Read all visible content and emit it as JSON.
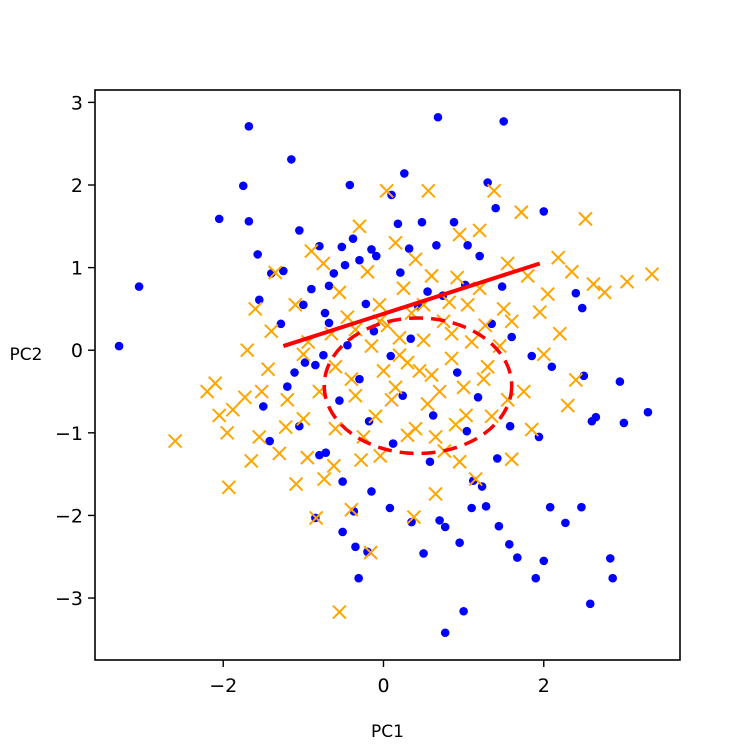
{
  "chart_data": {
    "type": "scatter",
    "title": "",
    "xlabel": "PC1",
    "ylabel": "PC2",
    "xlim": [
      -3.6,
      3.7
    ],
    "ylim": [
      -3.75,
      3.15
    ],
    "xticks": [
      -2,
      0,
      2
    ],
    "xtick_labels": [
      "−2",
      "0",
      "2"
    ],
    "yticks": [
      -3,
      -2,
      -1,
      0,
      1,
      2,
      3
    ],
    "ytick_labels": [
      "−3",
      "−2",
      "−1",
      "0",
      "1",
      "2",
      "3"
    ],
    "grid": false,
    "legend": "none",
    "series": [
      {
        "marker": "dot",
        "color": "#0000ff",
        "points": [
          [
            -3.3,
            0.05
          ],
          [
            -3.05,
            0.77
          ],
          [
            -2.05,
            1.59
          ],
          [
            -1.68,
            2.71
          ],
          [
            -1.75,
            1.99
          ],
          [
            -1.68,
            1.56
          ],
          [
            -1.57,
            1.16
          ],
          [
            -1.55,
            0.61
          ],
          [
            -1.4,
            0.93
          ],
          [
            -1.25,
            0.96
          ],
          [
            -1.15,
            2.31
          ],
          [
            -1.05,
            1.45
          ],
          [
            -1.0,
            0.55
          ],
          [
            -0.98,
            -0.15
          ],
          [
            -0.85,
            -0.18
          ],
          [
            -0.8,
            1.26
          ],
          [
            -0.75,
            -0.06
          ],
          [
            -0.73,
            0.45
          ],
          [
            -0.68,
            0.78
          ],
          [
            -0.62,
            0.93
          ],
          [
            -0.52,
            1.25
          ],
          [
            -0.48,
            1.03
          ],
          [
            -0.42,
            2.0
          ],
          [
            -0.38,
            1.35
          ],
          [
            -0.3,
            1.09
          ],
          [
            -0.22,
            0.56
          ],
          [
            -0.15,
            1.22
          ],
          [
            -0.09,
            1.14
          ],
          [
            0.1,
            1.88
          ],
          [
            0.18,
            1.53
          ],
          [
            0.26,
            2.14
          ],
          [
            0.32,
            1.23
          ],
          [
            0.48,
            1.55
          ],
          [
            0.55,
            0.71
          ],
          [
            0.68,
            2.82
          ],
          [
            0.88,
            1.55
          ],
          [
            1.05,
            1.27
          ],
          [
            1.2,
            1.14
          ],
          [
            1.3,
            2.03
          ],
          [
            1.4,
            1.72
          ],
          [
            1.5,
            2.77
          ],
          [
            2.0,
            1.68
          ],
          [
            2.4,
            0.69
          ],
          [
            2.48,
            0.51
          ],
          [
            2.5,
            -0.31
          ],
          [
            2.6,
            -0.86
          ],
          [
            2.65,
            -0.81
          ],
          [
            2.95,
            -0.38
          ],
          [
            3.0,
            -0.88
          ],
          [
            3.3,
            -0.75
          ],
          [
            -1.5,
            -0.68
          ],
          [
            -1.42,
            -1.1
          ],
          [
            -1.2,
            -0.44
          ],
          [
            -1.05,
            -0.92
          ],
          [
            -0.8,
            -1.27
          ],
          [
            -0.72,
            -1.24
          ],
          [
            -0.51,
            -1.59
          ],
          [
            -0.51,
            -2.2
          ],
          [
            -0.37,
            -1.95
          ],
          [
            -0.35,
            -2.38
          ],
          [
            -0.2,
            -2.44
          ],
          [
            -0.15,
            -1.71
          ],
          [
            0.08,
            -1.91
          ],
          [
            0.35,
            -2.08
          ],
          [
            0.5,
            -2.46
          ],
          [
            0.7,
            -2.06
          ],
          [
            0.77,
            -2.14
          ],
          [
            0.95,
            -2.33
          ],
          [
            1.0,
            -3.16
          ],
          [
            1.1,
            -1.91
          ],
          [
            1.23,
            -1.65
          ],
          [
            1.28,
            -1.89
          ],
          [
            1.44,
            -2.13
          ],
          [
            1.57,
            -2.35
          ],
          [
            1.67,
            -2.51
          ],
          [
            1.9,
            -2.76
          ],
          [
            2.0,
            -2.55
          ],
          [
            2.08,
            -1.9
          ],
          [
            2.27,
            -2.09
          ],
          [
            2.47,
            -1.9
          ],
          [
            2.58,
            -3.07
          ],
          [
            2.83,
            -2.52
          ],
          [
            2.86,
            -2.76
          ],
          [
            0.77,
            -3.42
          ],
          [
            -0.31,
            -2.76
          ],
          [
            -0.85,
            -2.03
          ],
          [
            0.43,
            0.54
          ],
          [
            0.74,
            0.66
          ],
          [
            1.02,
            0.79
          ],
          [
            1.35,
            0.32
          ],
          [
            1.6,
            0.16
          ],
          [
            1.85,
            -0.07
          ],
          [
            2.1,
            -0.2
          ],
          [
            1.58,
            -0.92
          ],
          [
            1.94,
            -1.05
          ],
          [
            1.42,
            -1.31
          ],
          [
            1.04,
            -0.98
          ],
          [
            0.62,
            -0.79
          ],
          [
            0.24,
            -0.55
          ],
          [
            -0.3,
            -0.35
          ],
          [
            -0.55,
            -0.61
          ],
          [
            -0.12,
            0.23
          ],
          [
            0.09,
            -0.07
          ],
          [
            0.34,
            0.14
          ],
          [
            0.92,
            -0.27
          ],
          [
            1.18,
            -0.57
          ],
          [
            -0.68,
            0.33
          ],
          [
            -0.45,
            0.06
          ],
          [
            -0.18,
            -0.86
          ],
          [
            0.12,
            -1.13
          ],
          [
            0.58,
            -1.35
          ],
          [
            1.12,
            -1.58
          ],
          [
            -0.9,
            0.74
          ],
          [
            -1.28,
            0.32
          ],
          [
            -1.11,
            -0.27
          ],
          [
            0.21,
            0.94
          ],
          [
            0.66,
            1.27
          ],
          [
            1.48,
            0.77
          ]
        ]
      },
      {
        "marker": "x",
        "color": "#ffa500",
        "points": [
          [
            -2.6,
            -1.1
          ],
          [
            -2.1,
            -0.4
          ],
          [
            -2.05,
            -0.79
          ],
          [
            -1.93,
            -1.66
          ],
          [
            -1.88,
            -0.72
          ],
          [
            -1.73,
            -0.57
          ],
          [
            -1.65,
            -1.34
          ],
          [
            -1.52,
            -0.5
          ],
          [
            -1.44,
            -0.23
          ],
          [
            -1.35,
            0.94
          ],
          [
            -1.22,
            -0.93
          ],
          [
            -1.09,
            -1.62
          ],
          [
            -1.0,
            -0.83
          ],
          [
            -0.94,
            0.1
          ],
          [
            -0.84,
            -2.03
          ],
          [
            -0.74,
            -1.56
          ],
          [
            -0.62,
            -1.4
          ],
          [
            -0.55,
            -3.17
          ],
          [
            -0.4,
            -1.93
          ],
          [
            -0.28,
            -1.33
          ],
          [
            -0.16,
            -2.45
          ],
          [
            -0.04,
            -1.28
          ],
          [
            0.04,
            1.93
          ],
          [
            0.2,
            -0.06
          ],
          [
            0.3,
            -1.03
          ],
          [
            0.38,
            -2.02
          ],
          [
            0.5,
            0.12
          ],
          [
            0.56,
            1.93
          ],
          [
            0.65,
            -1.74
          ],
          [
            0.76,
            -1.22
          ],
          [
            0.82,
            0.58
          ],
          [
            0.92,
            0.88
          ],
          [
            1.03,
            -0.79
          ],
          [
            1.15,
            -1.56
          ],
          [
            1.27,
            0.3
          ],
          [
            1.38,
            1.93
          ],
          [
            1.5,
            0.5
          ],
          [
            1.6,
            -1.32
          ],
          [
            1.72,
            1.67
          ],
          [
            1.85,
            -0.96
          ],
          [
            1.95,
            0.46
          ],
          [
            2.05,
            0.68
          ],
          [
            2.18,
            1.12
          ],
          [
            2.3,
            -0.67
          ],
          [
            2.4,
            -0.36
          ],
          [
            2.52,
            1.59
          ],
          [
            2.62,
            0.8
          ],
          [
            2.76,
            0.7
          ],
          [
            3.04,
            0.83
          ],
          [
            3.35,
            0.92
          ],
          [
            -1.7,
            0.0
          ],
          [
            -1.4,
            0.23
          ],
          [
            -1.1,
            0.55
          ],
          [
            -0.9,
            1.2
          ],
          [
            -0.75,
            1.05
          ],
          [
            -0.55,
            0.7
          ],
          [
            -0.35,
            0.25
          ],
          [
            -0.2,
            0.95
          ],
          [
            0.05,
            0.3
          ],
          [
            0.25,
            0.75
          ],
          [
            0.45,
            -0.25
          ],
          [
            0.7,
            -0.5
          ],
          [
            0.9,
            -0.9
          ],
          [
            1.1,
            0.1
          ],
          [
            1.3,
            -0.2
          ],
          [
            -0.6,
            -0.2
          ],
          [
            -0.35,
            -0.55
          ],
          [
            -0.1,
            -0.8
          ],
          [
            0.15,
            -0.45
          ],
          [
            0.35,
            0.45
          ],
          [
            0.55,
            -0.65
          ],
          [
            0.85,
            0.2
          ],
          [
            1.05,
            0.55
          ],
          [
            1.25,
            -0.35
          ],
          [
            1.45,
            0.05
          ],
          [
            -0.8,
            -0.5
          ],
          [
            -1.0,
            -0.05
          ],
          [
            -1.2,
            -0.6
          ],
          [
            -0.45,
            0.4
          ],
          [
            -0.05,
            0.55
          ],
          [
            0.6,
            0.9
          ],
          [
            0.85,
            -0.1
          ],
          [
            1.6,
            0.35
          ],
          [
            1.75,
            -0.5
          ],
          [
            2.0,
            -0.05
          ],
          [
            -0.25,
            -1.05
          ],
          [
            0.0,
            -0.25
          ],
          [
            0.2,
            0.15
          ],
          [
            0.4,
            -0.95
          ],
          [
            0.65,
            -1.05
          ],
          [
            -1.55,
            -1.05
          ],
          [
            -1.3,
            -1.25
          ],
          [
            -0.95,
            -1.3
          ],
          [
            -0.6,
            -0.95
          ],
          [
            0.95,
            -1.35
          ],
          [
            1.35,
            -0.8
          ],
          [
            1.55,
            -0.6
          ],
          [
            1.8,
            0.9
          ],
          [
            2.2,
            0.2
          ],
          [
            2.35,
            0.95
          ],
          [
            -2.2,
            -0.5
          ],
          [
            -1.95,
            -1.0
          ],
          [
            -1.6,
            0.5
          ],
          [
            -0.3,
            1.5
          ],
          [
            0.15,
            1.3
          ],
          [
            0.4,
            1.1
          ],
          [
            0.95,
            1.4
          ],
          [
            1.2,
            1.45
          ],
          [
            1.55,
            1.05
          ],
          [
            -0.65,
            0.2
          ],
          [
            -0.15,
            0.05
          ],
          [
            0.3,
            -0.15
          ],
          [
            0.75,
            0.35
          ],
          [
            1.0,
            -0.45
          ],
          [
            -0.4,
            -0.35
          ],
          [
            0.1,
            -0.6
          ],
          [
            0.5,
            0.55
          ],
          [
            1.2,
            0.75
          ],
          [
            0.6,
            -0.3
          ],
          [
            -0.05,
            0.35
          ]
        ]
      }
    ],
    "lines": [
      {
        "style": "solid",
        "color": "#ff0000",
        "points": [
          [
            -1.25,
            0.05
          ],
          [
            1.95,
            1.05
          ]
        ]
      },
      {
        "style": "dashed",
        "color": "#ff0000",
        "shape": "ellipse",
        "center": [
          0.43,
          -0.43
        ],
        "radii": [
          1.17,
          0.82
        ]
      }
    ]
  }
}
